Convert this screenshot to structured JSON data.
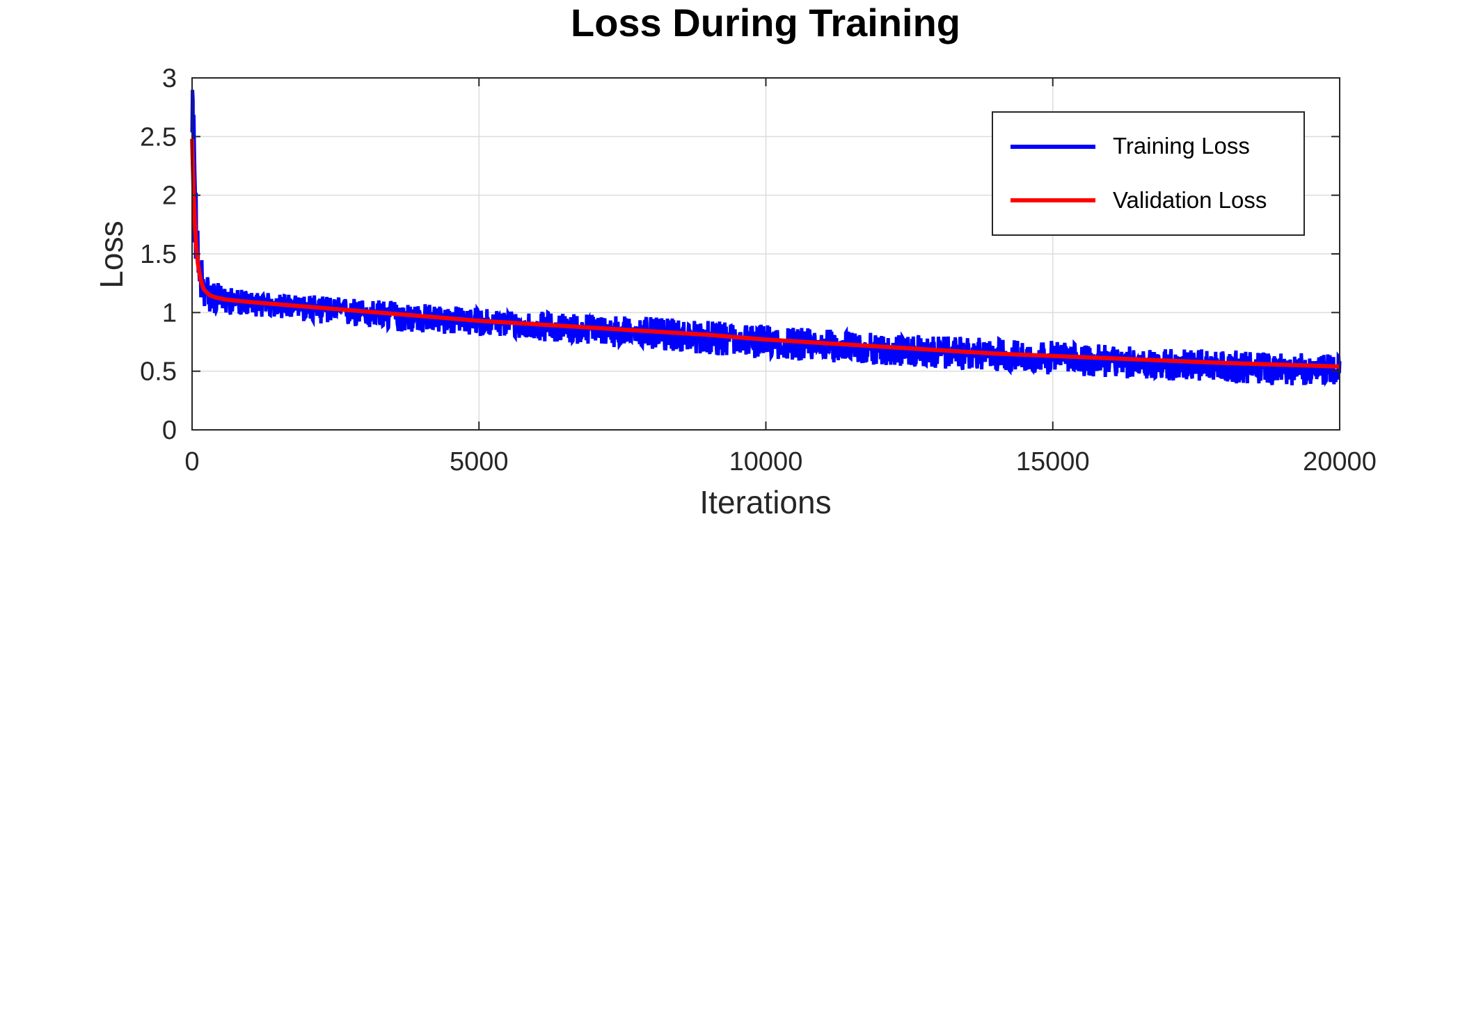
{
  "chart_data": {
    "type": "line",
    "title": "Loss During Training",
    "xlabel": "Iterations",
    "ylabel": "Loss",
    "xlim": [
      0,
      20000
    ],
    "ylim": [
      0,
      3
    ],
    "xticks": [
      0,
      5000,
      10000,
      15000,
      20000
    ],
    "xtick_labels": [
      "0",
      "5000",
      "10000",
      "15000",
      "20000"
    ],
    "yticks": [
      0,
      0.5,
      1,
      1.5,
      2,
      2.5,
      3
    ],
    "ytick_labels": [
      "0",
      "0.5",
      "1",
      "1.5",
      "2",
      "2.5",
      "3"
    ],
    "grid": true,
    "legend_position": "top-right",
    "series": [
      {
        "name": "Training Loss",
        "color": "#0000ff",
        "style": "noisy",
        "x": [
          0,
          20,
          40,
          60,
          80,
          100,
          150,
          200,
          300,
          400,
          600,
          800,
          1000,
          1500,
          2000,
          3000,
          4000,
          5000,
          6000,
          7000,
          8000,
          9000,
          10000,
          11000,
          12000,
          13000,
          14000,
          15000,
          16000,
          17000,
          18000,
          19000,
          20000
        ],
        "y": [
          2.45,
          2.75,
          2.3,
          1.9,
          1.65,
          1.45,
          1.3,
          1.22,
          1.17,
          1.14,
          1.11,
          1.1,
          1.09,
          1.07,
          1.05,
          1.0,
          0.96,
          0.92,
          0.88,
          0.85,
          0.82,
          0.78,
          0.75,
          0.72,
          0.69,
          0.66,
          0.63,
          0.61,
          0.58,
          0.56,
          0.53,
          0.51,
          0.5
        ],
        "y_min": [
          1.6,
          1.4,
          1.35,
          1.3,
          1.2,
          1.15,
          1.1,
          1.05,
          1.0,
          0.98,
          0.98,
          0.98,
          0.97,
          0.95,
          0.92,
          0.86,
          0.82,
          0.8,
          0.76,
          0.72,
          0.68,
          0.64,
          0.6,
          0.58,
          0.55,
          0.52,
          0.5,
          0.47,
          0.44,
          0.42,
          0.4,
          0.38,
          0.38
        ],
        "y_max": [
          2.9,
          2.9,
          2.6,
          2.2,
          1.95,
          1.75,
          1.55,
          1.4,
          1.3,
          1.26,
          1.22,
          1.2,
          1.18,
          1.16,
          1.15,
          1.12,
          1.08,
          1.04,
          1.01,
          0.99,
          0.96,
          0.93,
          0.9,
          0.86,
          0.82,
          0.8,
          0.78,
          0.76,
          0.72,
          0.7,
          0.68,
          0.66,
          0.64
        ]
      },
      {
        "name": "Validation Loss",
        "color": "#ff0000",
        "style": "smooth",
        "x": [
          0,
          25,
          50,
          75,
          100,
          150,
          200,
          300,
          400,
          600,
          800,
          1000,
          1500,
          2000,
          3000,
          4000,
          5000,
          6000,
          7000,
          8000,
          9000,
          10000,
          11000,
          12000,
          13000,
          14000,
          15000,
          16000,
          17000,
          18000,
          19000,
          20000
        ],
        "y": [
          2.48,
          2.05,
          1.75,
          1.55,
          1.42,
          1.28,
          1.2,
          1.15,
          1.13,
          1.11,
          1.1,
          1.09,
          1.07,
          1.05,
          1.01,
          0.97,
          0.93,
          0.9,
          0.87,
          0.84,
          0.81,
          0.77,
          0.74,
          0.71,
          0.68,
          0.65,
          0.63,
          0.61,
          0.59,
          0.57,
          0.555,
          0.54
        ]
      }
    ]
  }
}
